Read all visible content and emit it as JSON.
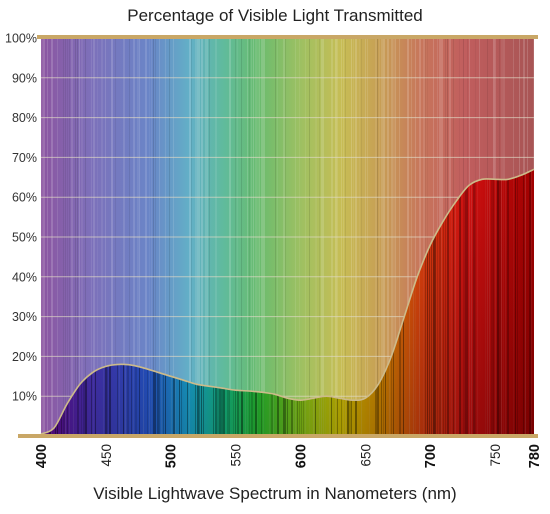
{
  "chart_data": {
    "type": "area",
    "title": "Percentage of Visible Light Transmitted",
    "xlabel": "Visible Lightwave Spectrum in Nanometers (nm)",
    "ylabel": "",
    "xlim": [
      400,
      780
    ],
    "ylim": [
      0,
      100
    ],
    "y_ticks": [
      "10%",
      "20%",
      "30%",
      "40%",
      "50%",
      "60%",
      "70%",
      "80%",
      "90%",
      "100%"
    ],
    "x_ticks": [
      {
        "value": 400,
        "label": "400",
        "bold": true
      },
      {
        "value": 450,
        "label": "450",
        "bold": false
      },
      {
        "value": 500,
        "label": "500",
        "bold": true
      },
      {
        "value": 550,
        "label": "550",
        "bold": false
      },
      {
        "value": 600,
        "label": "600",
        "bold": true
      },
      {
        "value": 650,
        "label": "650",
        "bold": false
      },
      {
        "value": 700,
        "label": "700",
        "bold": true
      },
      {
        "value": 750,
        "label": "750",
        "bold": false
      },
      {
        "value": 780,
        "label": "780",
        "bold": true
      }
    ],
    "grid": true,
    "x": [
      400,
      410,
      420,
      430,
      440,
      450,
      460,
      470,
      480,
      490,
      500,
      510,
      520,
      530,
      540,
      550,
      560,
      570,
      580,
      590,
      600,
      610,
      620,
      630,
      640,
      650,
      660,
      670,
      680,
      690,
      700,
      710,
      720,
      730,
      740,
      750,
      760,
      770,
      780
    ],
    "y": [
      0.5,
      2,
      8,
      13,
      16,
      17.5,
      18,
      17.8,
      17,
      16,
      15,
      14,
      13,
      12.5,
      12,
      11.5,
      11.3,
      11,
      10.5,
      9.5,
      9,
      9.5,
      10,
      9.5,
      9,
      9.5,
      13,
      20,
      30,
      40,
      48,
      54,
      59,
      63,
      64.5,
      64.5,
      64.5,
      65.5,
      67
    ]
  },
  "colors": {
    "background_gray": "#9a9a9a",
    "grid_line": "#e0d8c4",
    "frame_gold": "#c9a766",
    "curve_outline": "#cdbb8a"
  }
}
